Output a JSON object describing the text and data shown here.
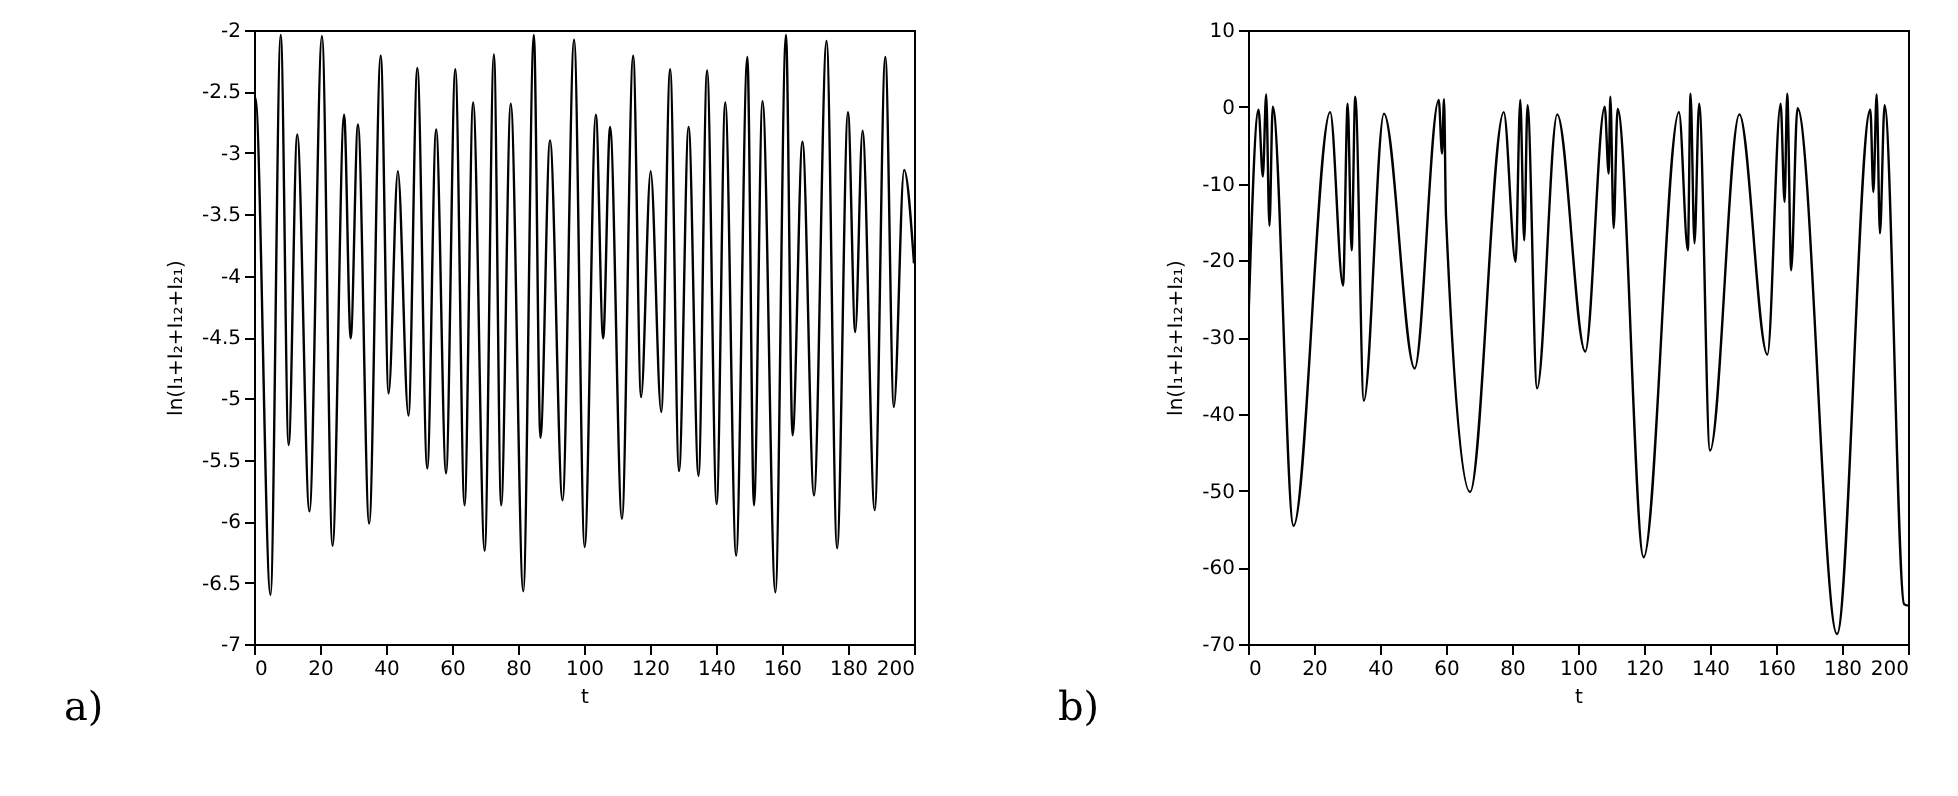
{
  "chart_data": [
    {
      "type": "line",
      "xlabel": "t",
      "ylabel": "ln(I₁+I₂+I₁₂+I₂₁)",
      "annotations": [
        "a)"
      ],
      "x": [
        0,
        0.4,
        5.0,
        8.1,
        10.5,
        13.1,
        16.8,
        20.6,
        23.8,
        27.3,
        29.3,
        31.5,
        34.9,
        38.4,
        40.8,
        43.6,
        46.8,
        49.5,
        52.5,
        55.2,
        58.2,
        61.0,
        63.8,
        66.4,
        69.9,
        72.7,
        74.9,
        77.8,
        81.6,
        84.8,
        86.8,
        89.7,
        93.5,
        97.0,
        100.2,
        103.6,
        105.8,
        107.9,
        111.5,
        114.9,
        117.3,
        120.2,
        123.4,
        126.1,
        128.8,
        131.7,
        134.7,
        137.3,
        140.2,
        142.8,
        146.1,
        149.5,
        151.5,
        154.1,
        158.0,
        161.2,
        163.2,
        166.2,
        169.7,
        173.5,
        176.7,
        180.0,
        182.2,
        184.4,
        188.1,
        191.3,
        193.9,
        197.0,
        200
      ],
      "series": [
        {
          "color": "#000000",
          "values": [
            -2.7,
            -2.55,
            -6.6,
            -2.04,
            -5.38,
            -2.85,
            -5.92,
            -2.05,
            -6.2,
            -2.69,
            -4.51,
            -2.77,
            -6.02,
            -2.21,
            -4.96,
            -3.15,
            -5.14,
            -2.31,
            -5.57,
            -2.81,
            -5.61,
            -2.32,
            -5.87,
            -2.59,
            -6.24,
            -2.2,
            -5.87,
            -2.6,
            -6.57,
            -2.04,
            -5.32,
            -2.9,
            -5.83,
            -2.08,
            -6.21,
            -2.69,
            -4.51,
            -2.79,
            -5.98,
            -2.21,
            -4.99,
            -3.15,
            -5.11,
            -2.32,
            -5.59,
            -2.79,
            -5.63,
            -2.33,
            -5.86,
            -2.59,
            -6.28,
            -2.22,
            -5.87,
            -2.58,
            -6.58,
            -2.04,
            -5.3,
            -2.91,
            -5.79,
            -2.09,
            -6.22,
            -2.67,
            -4.46,
            -2.82,
            -5.91,
            -2.22,
            -5.07,
            -3.14,
            -3.9
          ]
        }
      ],
      "xlim": [
        0,
        200
      ],
      "xticks": [
        0,
        20,
        40,
        60,
        80,
        100,
        120,
        140,
        160,
        180,
        200
      ],
      "ylim": [
        -7,
        -2
      ],
      "yticks": [
        -7,
        -6.5,
        -6,
        -5.5,
        -5,
        -4.5,
        -4,
        -3.5,
        -3,
        -2.5,
        -2
      ],
      "grid": false
    },
    {
      "type": "line",
      "xlabel": "t",
      "ylabel": "ln(I₁+I₂+I₁₂+I₂₁)",
      "annotations": [
        "b)"
      ],
      "x": [
        0,
        3.2,
        4.5,
        5.5,
        6.5,
        7.5,
        13.8,
        24.9,
        28.8,
        30.2,
        31.4,
        32.5,
        35.1,
        41.2,
        50.5,
        57.8,
        58.8,
        59.4,
        60.0,
        67.3,
        77.5,
        81.1,
        82.5,
        83.7,
        84.7,
        87.6,
        93.7,
        102.2,
        108.1,
        109.3,
        109.8,
        110.8,
        112.0,
        119.9,
        130.6,
        133.3,
        134.1,
        135.3,
        136.7,
        140.0,
        148.9,
        157.4,
        161.4,
        162.6,
        163.4,
        164.6,
        166.5,
        178.5,
        188.6,
        189.5,
        190.5,
        191.5,
        192.9,
        198.8,
        200
      ],
      "series": [
        {
          "color": "#000000",
          "values": [
            -29.6,
            -0.4,
            -9.1,
            1.6,
            -15.5,
            0,
            -54.6,
            -0.7,
            -23.3,
            0.4,
            -18.7,
            1.3,
            -38.3,
            -0.9,
            -34.1,
            0.9,
            -6.1,
            1.0,
            -14.3,
            -50.2,
            -0.7,
            -20.2,
            0.9,
            -17.4,
            0.2,
            -36.7,
            -1.0,
            -31.9,
            0,
            -8.7,
            1.3,
            -15.8,
            -0.3,
            -58.7,
            -0.7,
            -18.7,
            1.7,
            -17.8,
            0.4,
            -44.8,
            -1.0,
            -32.3,
            0.4,
            -12.4,
            1.7,
            -21.3,
            -0.2,
            -68.7,
            -0.4,
            -11.1,
            1.6,
            -16.5,
            0.2,
            -64.8,
            -65
          ]
        }
      ],
      "xlim": [
        0,
        200
      ],
      "xticks": [
        0,
        20,
        40,
        60,
        80,
        100,
        120,
        140,
        160,
        180,
        200
      ],
      "ylim": [
        -70,
        10
      ],
      "yticks": [
        -70,
        -60,
        -50,
        -40,
        -30,
        -20,
        -10,
        0,
        10
      ],
      "grid": false
    }
  ]
}
